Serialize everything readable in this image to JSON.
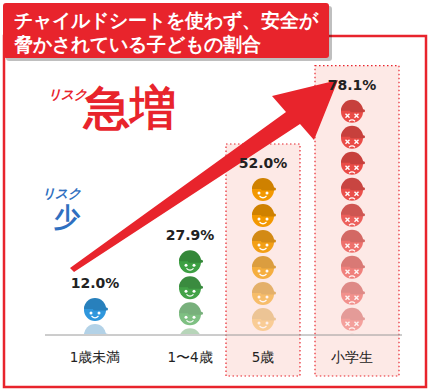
{
  "chart_data": {
    "type": "bar",
    "title": "チャイルドシートを使わず、安全が脅かされている子どもの割合",
    "categories": [
      "1歳未満",
      "1〜4歳",
      "5歳",
      "小学生"
    ],
    "values": [
      12.0,
      27.9,
      52.0,
      78.1
    ],
    "value_labels": [
      "12.0%",
      "27.9%",
      "52.0%",
      "78.1%"
    ],
    "colors": [
      "#2f97dd",
      "#3da043",
      "#f39800",
      "#ea4b46"
    ],
    "ylim": [
      0,
      80
    ],
    "tick_labels": false,
    "data_labels": true,
    "annotations": [
      "リスク",
      "急増",
      "リスク",
      "少"
    ]
  }
}
